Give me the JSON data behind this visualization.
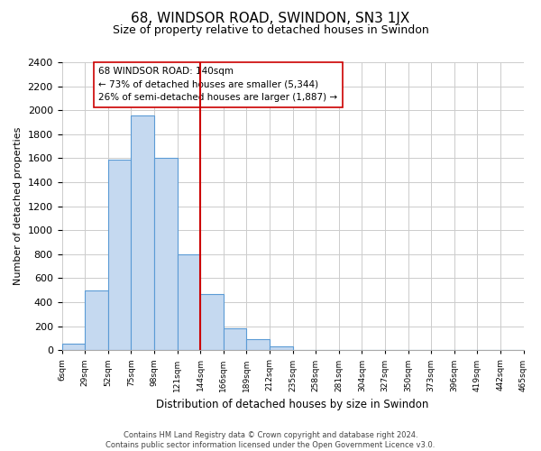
{
  "title": "68, WINDSOR ROAD, SWINDON, SN3 1JX",
  "subtitle": "Size of property relative to detached houses in Swindon",
  "xlabel": "Distribution of detached houses by size in Swindon",
  "ylabel": "Number of detached properties",
  "bin_labels": [
    "6sqm",
    "29sqm",
    "52sqm",
    "75sqm",
    "98sqm",
    "121sqm",
    "144sqm",
    "166sqm",
    "189sqm",
    "212sqm",
    "235sqm",
    "258sqm",
    "281sqm",
    "304sqm",
    "327sqm",
    "350sqm",
    "373sqm",
    "396sqm",
    "419sqm",
    "442sqm",
    "465sqm"
  ],
  "bar_heights": [
    55,
    500,
    1590,
    1960,
    1600,
    800,
    470,
    185,
    95,
    30,
    0,
    0,
    0,
    0,
    0,
    0,
    0,
    0,
    0,
    0
  ],
  "bar_color": "#c5d9f0",
  "bar_edge_color": "#5b9bd5",
  "vline_x_index": 6,
  "vline_color": "#cc0000",
  "annotation_text": "68 WINDSOR ROAD: 140sqm\n← 73% of detached houses are smaller (5,344)\n26% of semi-detached houses are larger (1,887) →",
  "ylim": [
    0,
    2400
  ],
  "yticks": [
    0,
    200,
    400,
    600,
    800,
    1000,
    1200,
    1400,
    1600,
    1800,
    2000,
    2200,
    2400
  ],
  "footnote": "Contains HM Land Registry data © Crown copyright and database right 2024.\nContains public sector information licensed under the Open Government Licence v3.0.",
  "background_color": "#ffffff",
  "grid_color": "#cccccc"
}
